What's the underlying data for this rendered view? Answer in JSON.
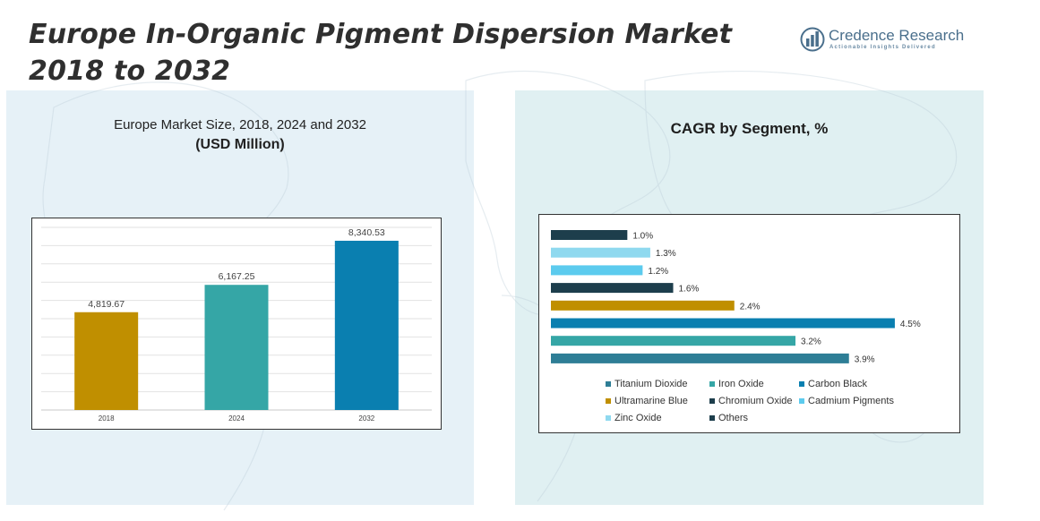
{
  "header": {
    "title_line1": "Europe In-Organic Pigment Dispersion Market",
    "title_line2": "2018 to 2032"
  },
  "logo": {
    "name": "Credence Research",
    "tagline": "Actionable Insights Delivered",
    "icon": "bar-chart-circle-icon",
    "color": "#4a6f8c"
  },
  "left_panel": {
    "subtitle_line1": "Europe Market Size, 2018, 2024 and 2032",
    "subtitle_line2": "(USD Million)"
  },
  "right_panel": {
    "title": "CAGR by Segment, %"
  },
  "chart_data": [
    {
      "type": "bar",
      "title": "Europe Market Size, 2018, 2024 and 2032 (USD Million)",
      "categories": [
        "2018",
        "2024",
        "2032"
      ],
      "values": [
        4819.67,
        6167.25,
        8340.53
      ],
      "value_labels": [
        "4,819.67",
        "6,167.25",
        "8,340.53"
      ],
      "colors": [
        "#c08f00",
        "#35a6a6",
        "#0a7fb0"
      ],
      "ylim": [
        0,
        9000
      ],
      "grid": true,
      "xlabel": "",
      "ylabel": ""
    },
    {
      "type": "bar",
      "orientation": "horizontal",
      "title": "CAGR by Segment, %",
      "categories": [
        "Others",
        "Zinc Oxide",
        "Cadmium Pigments",
        "Chromium Oxide",
        "Ultramarine Blue",
        "Carbon Black",
        "Iron Oxide",
        "Titanium Dioxide"
      ],
      "values": [
        1.0,
        1.3,
        1.2,
        1.6,
        2.4,
        4.5,
        3.2,
        3.9
      ],
      "value_labels": [
        "1.0%",
        "1.3%",
        "1.2%",
        "1.6%",
        "2.4%",
        "4.5%",
        "3.2%",
        "3.9%"
      ],
      "colors": [
        "#1d3e4c",
        "#8fd9ef",
        "#5ccbee",
        "#1d3e4c",
        "#c08f00",
        "#0a7fb0",
        "#35a6a6",
        "#2e7e96"
      ],
      "xlim": [
        0,
        4.7
      ],
      "legend": {
        "position": "bottom",
        "entries": [
          {
            "label": "Titanium Dioxide",
            "color": "#2e7e96"
          },
          {
            "label": "Iron Oxide",
            "color": "#35a6a6"
          },
          {
            "label": "Carbon Black",
            "color": "#0a7fb0"
          },
          {
            "label": "Ultramarine Blue",
            "color": "#c08f00"
          },
          {
            "label": "Chromium Oxide",
            "color": "#1d3e4c"
          },
          {
            "label": "Cadmium Pigments",
            "color": "#5ccbee"
          },
          {
            "label": "Zinc Oxide",
            "color": "#8fd9ef"
          },
          {
            "label": "Others",
            "color": "#1d3e4c"
          }
        ]
      }
    }
  ]
}
